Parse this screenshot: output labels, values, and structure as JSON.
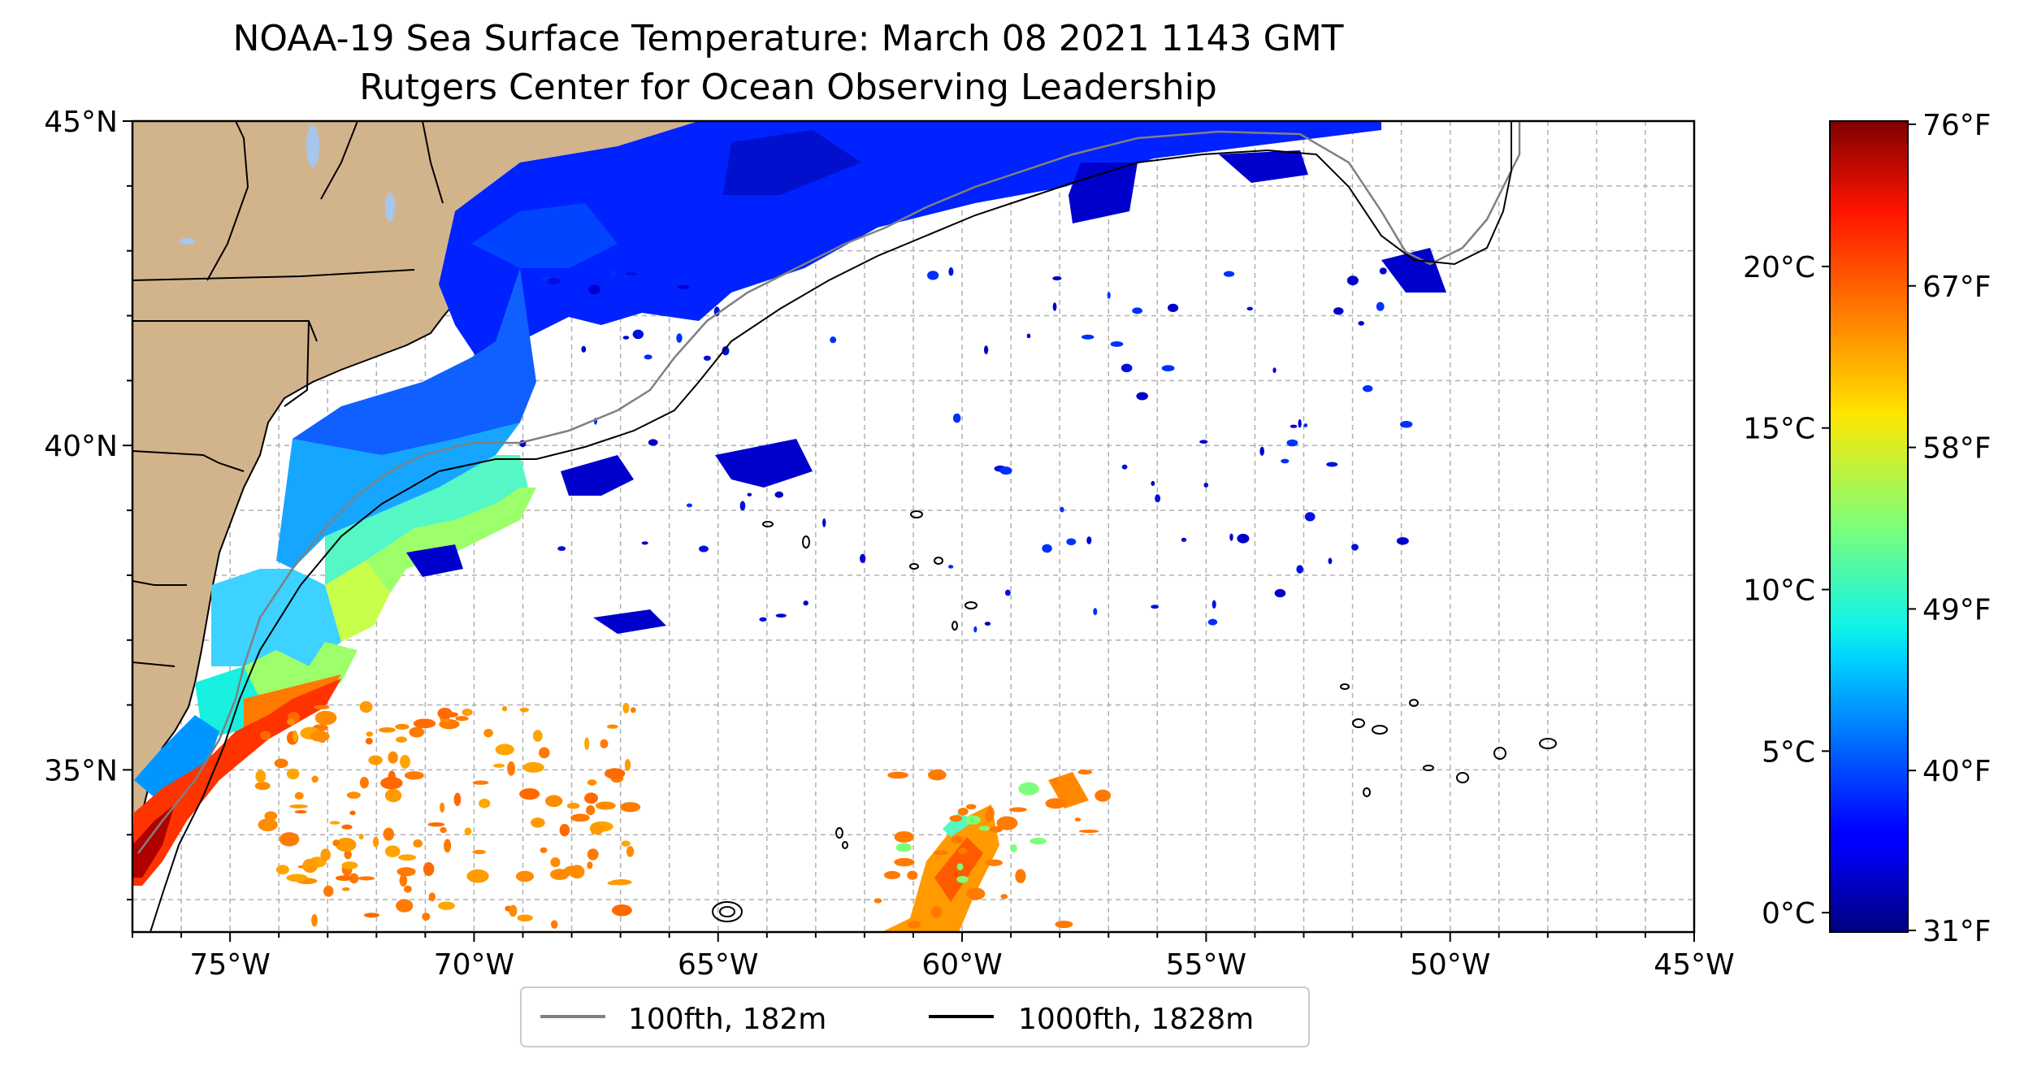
{
  "title": "NOAA-19 Sea Surface Temperature: March 08 2021 1143 GMT",
  "subtitle": "Rutgers Center for Ocean Observing Leadership",
  "map": {
    "lon_range": [
      -77,
      -45
    ],
    "lat_range": [
      32.5,
      45
    ],
    "lon_ticks": [
      -75,
      -70,
      -65,
      -60,
      -55,
      -50,
      -45
    ],
    "lon_tick_labels": [
      "75°W",
      "70°W",
      "65°W",
      "60°W",
      "55°W",
      "50°W",
      "45°W"
    ],
    "lat_ticks": [
      35,
      40,
      45
    ],
    "lat_tick_labels": [
      "35°N",
      "40°N",
      "45°N"
    ],
    "gridlines": "dashed, 1° spacing",
    "land_color": "#d2b48c",
    "lake_color": "#a6c6ec"
  },
  "colorbar": {
    "colormap": "jet",
    "range_c": [
      -0.6,
      24.5
    ],
    "celsius_ticks": [
      0,
      5,
      10,
      15,
      20
    ],
    "celsius_labels": [
      "0°C",
      "5°C",
      "10°C",
      "15°C",
      "20°C"
    ],
    "fahrenheit_ticks_c": [
      -0.6,
      4.4,
      9.4,
      14.4,
      19.4,
      24.4
    ],
    "fahrenheit_labels": [
      "31°F",
      "40°F",
      "49°F",
      "58°F",
      "67°F",
      "76°F"
    ]
  },
  "legend": {
    "items": [
      {
        "label": "100fth, 182m",
        "color": "#808080"
      },
      {
        "label": "1000fth, 1828m",
        "color": "#000000"
      }
    ]
  }
}
